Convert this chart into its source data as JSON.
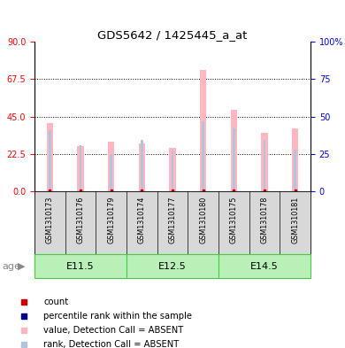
{
  "title": "GDS5642 / 1425445_a_at",
  "samples": [
    "GSM1310173",
    "GSM1310176",
    "GSM1310179",
    "GSM1310174",
    "GSM1310177",
    "GSM1310180",
    "GSM1310175",
    "GSM1310178",
    "GSM1310181"
  ],
  "value_absent": [
    41.0,
    27.0,
    30.0,
    29.0,
    26.0,
    73.0,
    49.0,
    35.0,
    38.0
  ],
  "rank_absent": [
    37.0,
    28.0,
    22.5,
    31.0,
    24.0,
    42.0,
    38.0,
    31.0,
    25.0
  ],
  "ylim_left": [
    0,
    90
  ],
  "ylim_right": [
    0,
    100
  ],
  "yticks_left": [
    0,
    22.5,
    45,
    67.5,
    90
  ],
  "yticks_right": [
    0,
    25,
    50,
    75,
    100
  ],
  "value_color": "#FFB6C1",
  "rank_color": "#B0C4DE",
  "count_color": "#CC0000",
  "percentile_color": "#00008B",
  "age_label": "age",
  "groups": [
    {
      "label": "E11.5",
      "start": 0,
      "end": 2
    },
    {
      "label": "E12.5",
      "start": 3,
      "end": 5
    },
    {
      "label": "E14.5",
      "start": 6,
      "end": 8
    }
  ],
  "group_light": "#b8f0b8",
  "group_dark": "#44cc44",
  "legend_items": [
    {
      "color": "#CC0000",
      "label": "count"
    },
    {
      "color": "#00008B",
      "label": "percentile rank within the sample"
    },
    {
      "color": "#FFB6C1",
      "label": "value, Detection Call = ABSENT"
    },
    {
      "color": "#B0C4DE",
      "label": "rank, Detection Call = ABSENT"
    }
  ]
}
